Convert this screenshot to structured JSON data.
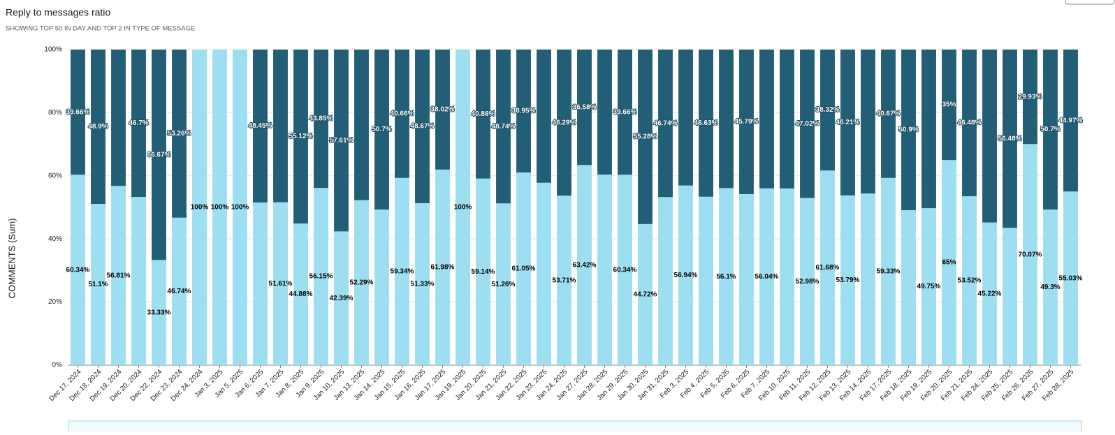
{
  "chart_data": {
    "type": "stacked_bar",
    "title": "Reply to messages ratio",
    "subtitle": "SHOWING TOP 50 IN DAY AND TOP 2 IN TYPE OF MESSAGE",
    "ylabel": "COMMENTS (Sum)",
    "categories": [
      "Dec 17, 2024",
      "Dec 18, 2024",
      "Dec 19, 2024",
      "Dec 20, 2024",
      "Dec 22, 2024",
      "Dec 23, 2024",
      "Dec 24, 2024",
      "Jan 3, 2025",
      "Jan 5, 2025",
      "Jan 6, 2025",
      "Jan 7, 2025",
      "Jan 8, 2025",
      "Jan 9, 2025",
      "Jan 10, 2025",
      "Jan 13, 2025",
      "Jan 14, 2025",
      "Jan 15, 2025",
      "Jan 16, 2025",
      "Jan 17, 2025",
      "Jan 19, 2025",
      "Jan 20, 2025",
      "Jan 21, 2025",
      "Jan 22, 2025",
      "Jan 23, 2025",
      "Jan 24, 2025",
      "Jan 27, 2025",
      "Jan 28, 2025",
      "Jan 29, 2025",
      "Jan 30, 2025",
      "Jan 31, 2025",
      "Feb 3, 2025",
      "Feb 4, 2025",
      "Feb 5, 2025",
      "Feb 6, 2025",
      "Feb 7, 2025",
      "Feb 10, 2025",
      "Feb 11, 2025",
      "Feb 12, 2025",
      "Feb 13, 2025",
      "Feb 14, 2025",
      "Feb 17, 2025",
      "Feb 18, 2025",
      "Feb 19, 2025",
      "Feb 20, 2025",
      "Feb 21, 2025",
      "Feb 24, 2025",
      "Feb 25, 2025",
      "Feb 26, 2025",
      "Feb 27, 2025",
      "Feb 28, 2025"
    ],
    "series": [
      {
        "color": "#9ddff0",
        "label_color": "#000000",
        "values": [
          60.34,
          51.1,
          56.81,
          53.3,
          33.33,
          46.74,
          100,
          100,
          100,
          51.55,
          51.61,
          44.88,
          56.15,
          42.39,
          52.29,
          49.3,
          59.34,
          51.33,
          61.98,
          100,
          59.14,
          51.26,
          61.05,
          57.8,
          53.71,
          63.42,
          60.4,
          60.34,
          44.72,
          53.26,
          56.94,
          53.37,
          56.1,
          54.21,
          56.04,
          56,
          52.98,
          61.68,
          53.79,
          54.4,
          59.33,
          49.1,
          49.75,
          65,
          53.52,
          45.22,
          43.52,
          70.07,
          49.3,
          55.03
        ],
        "value_labels": [
          "60.34%",
          "51.1%",
          "56.81%",
          null,
          "33.33%",
          "46.74%",
          "100%",
          "100%",
          "100%",
          null,
          "51.61%",
          "44.88%",
          "56.15%",
          "42.39%",
          "52.29%",
          null,
          "59.34%",
          "51.33%",
          "61.98%",
          "100%",
          "59.14%",
          "51.26%",
          "61.05%",
          null,
          "53.71%",
          "63.42%",
          null,
          "60.34%",
          "44.72%",
          null,
          "56.94%",
          null,
          "56.1%",
          null,
          "56.04%",
          null,
          "52.98%",
          "61.68%",
          "53.79%",
          null,
          "59.33%",
          null,
          "49.75%",
          "65%",
          "53.52%",
          "45.22%",
          null,
          "70.07%",
          "49.3%",
          "55.03%"
        ]
      },
      {
        "color": "#225e75",
        "label_color": "#ffffff",
        "values": [
          39.66,
          48.9,
          43.19,
          46.7,
          66.67,
          53.26,
          0,
          0,
          0,
          48.45,
          48.39,
          55.12,
          43.85,
          57.61,
          47.71,
          50.7,
          40.66,
          48.67,
          38.02,
          0,
          40.86,
          48.74,
          38.95,
          42.2,
          46.29,
          36.58,
          39.6,
          39.66,
          55.28,
          46.74,
          43.06,
          46.63,
          43.9,
          45.79,
          43.96,
          44,
          47.02,
          38.32,
          46.21,
          45.6,
          40.67,
          50.9,
          50.25,
          35,
          46.48,
          54.78,
          56.48,
          29.93,
          50.7,
          44.97
        ],
        "value_labels": [
          "39.66%",
          "48.9%",
          null,
          "46.7%",
          "66.67%",
          "53.26%",
          null,
          null,
          null,
          "48.45%",
          null,
          "55.12%",
          "43.85%",
          "57.61%",
          null,
          "50.7%",
          "40.66%",
          "48.67%",
          "38.02%",
          null,
          "40.86%",
          "48.74%",
          "38.95%",
          null,
          "46.29%",
          "36.58%",
          null,
          "39.66%",
          "55.28%",
          "46.74%",
          null,
          "46.63%",
          null,
          "45.79%",
          null,
          null,
          "47.02%",
          "38.32%",
          "46.21%",
          null,
          "40.67%",
          "50.9%",
          null,
          "35%",
          "46.48%",
          null,
          "56.48%",
          "29.93%",
          "50.7%",
          "44.97%"
        ]
      }
    ],
    "ylim": [
      0,
      100
    ],
    "yticks": [
      {
        "value": 0,
        "label": "0%"
      },
      {
        "value": 20,
        "label": "20%"
      },
      {
        "value": 40,
        "label": "40%"
      },
      {
        "value": 60,
        "label": "60%"
      },
      {
        "value": 80,
        "label": "80%"
      },
      {
        "value": 100,
        "label": "100%"
      }
    ],
    "grid": true
  }
}
